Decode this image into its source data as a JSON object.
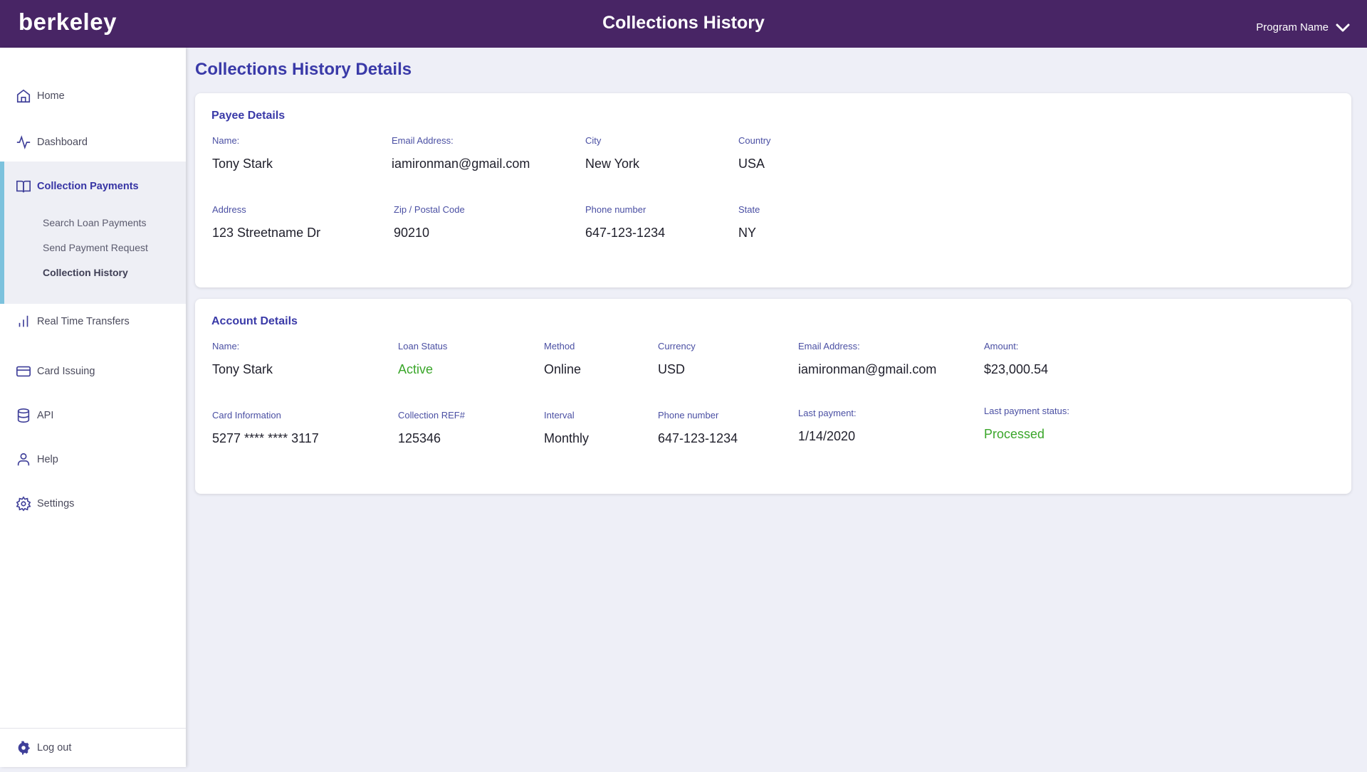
{
  "header": {
    "logo_text": "berkeley",
    "title": "Collections History",
    "program_select": "Program Name"
  },
  "sidebar": {
    "items": [
      {
        "label": "Home",
        "icon": "home-icon"
      },
      {
        "label": "Dashboard",
        "icon": "activity-icon"
      },
      {
        "label": "Collection Payments",
        "icon": "book-open-icon"
      },
      {
        "label": "Real Time Transfers",
        "icon": "bar-chart-icon"
      },
      {
        "label": "Card Issuing",
        "icon": "credit-card-icon"
      },
      {
        "label": "API",
        "icon": "database-icon"
      },
      {
        "label": "Help",
        "icon": "user-icon"
      },
      {
        "label": "Settings",
        "icon": "gear-icon"
      }
    ],
    "sub_items": [
      {
        "label": "Search Loan Payments"
      },
      {
        "label": "Send Payment Request"
      },
      {
        "label": "Collection History"
      }
    ],
    "logout": {
      "label": "Log out",
      "icon": "cog-icon"
    }
  },
  "main": {
    "title": "Collections History Details"
  },
  "payee": {
    "title": "Payee Details",
    "name_label": "Name:",
    "name": "Tony Stark",
    "email_label": "Email Address:",
    "email": "iamironman@gmail.com",
    "city_label": "City",
    "city": "New York",
    "country_label": "Country",
    "country": "USA",
    "address_label": "Address",
    "address": "123 Streetname Dr",
    "zip_label": "Zip / Postal Code",
    "zip": "90210",
    "phone_label": "Phone number",
    "phone": "647-123-1234",
    "state_label": "State",
    "state": "NY"
  },
  "account": {
    "title": "Account Details",
    "name_label": "Name:",
    "name": "Tony Stark",
    "loan_status_label": "Loan Status",
    "loan_status": "Active",
    "method_label": "Method",
    "method": "Online",
    "currency_label": "Currency",
    "currency": "USD",
    "email_label": "Email Address:",
    "email": "iamironman@gmail.com",
    "amount_label": "Amount:",
    "amount": "$23,000.54",
    "card_label": "Card Information",
    "card": "5277 **** **** 3117",
    "ref_label": "Collection REF#",
    "ref": "125346",
    "interval_label": "Interval",
    "interval": "Monthly",
    "phone_label": "Phone number",
    "phone": "647-123-1234",
    "last_payment_label": "Last payment:",
    "last_payment": "1/14/2020",
    "last_status_label": "Last payment status:",
    "last_status": "Processed"
  },
  "colors": {
    "header_bg": "#482565",
    "accent": "#3a3aa8",
    "success": "#3aa62a",
    "active_bar": "#7cc2dd"
  }
}
